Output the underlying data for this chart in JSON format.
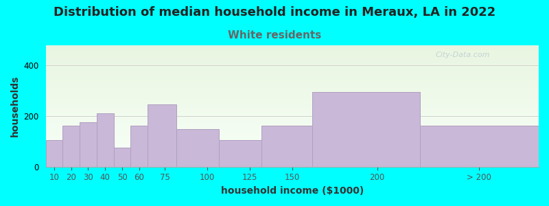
{
  "title": "Distribution of median household income in Meraux, LA in 2022",
  "subtitle": "White residents",
  "xlabel": "household income ($1000)",
  "ylabel": "households",
  "background_color": "#00FFFF",
  "bar_color": "#c9b8d8",
  "bar_edge_color": "#b0a0c0",
  "subtitle_color": "#666666",
  "title_color": "#222222",
  "watermark": "City-Data.com",
  "categories": [
    "10",
    "20",
    "30",
    "40",
    "50",
    "60",
    "75",
    "100",
    "125",
    "150",
    "200",
    "> 200"
  ],
  "values": [
    105,
    162,
    175,
    210,
    75,
    162,
    247,
    148,
    105,
    162,
    295,
    162
  ],
  "left_edges": [
    5,
    15,
    25,
    35,
    45,
    55,
    65,
    82,
    107,
    132,
    162,
    225
  ],
  "widths": [
    10,
    10,
    10,
    10,
    10,
    10,
    17,
    25,
    25,
    30,
    63,
    70
  ],
  "xlim": [
    5,
    295
  ],
  "xtick_positions": [
    10,
    20,
    30,
    40,
    50,
    60,
    75,
    100,
    125,
    150,
    200,
    260
  ],
  "xtick_labels": [
    "10",
    "20",
    "30",
    "40",
    "50",
    "60",
    "75",
    "100",
    "125",
    "150",
    "200",
    "> 200"
  ],
  "ylim": [
    0,
    480
  ],
  "yticks": [
    0,
    200,
    400
  ],
  "title_fontsize": 13,
  "subtitle_fontsize": 11,
  "axis_label_fontsize": 10,
  "tick_fontsize": 8.5
}
